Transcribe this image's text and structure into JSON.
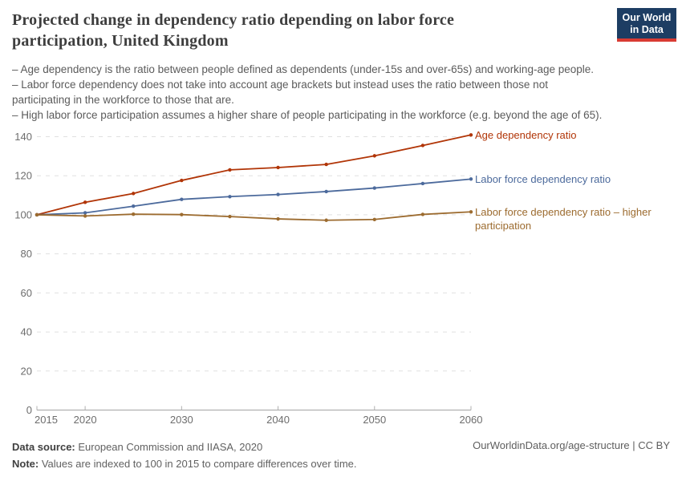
{
  "header": {
    "title": "Projected change in dependency ratio depending on labor force participation, United Kingdom",
    "logo": {
      "line1": "Our World",
      "line2": "in Data",
      "bg_color": "#1d3d63",
      "stripe_color": "#d93b33"
    }
  },
  "subtitle": {
    "lines": [
      "– Age dependency is the ratio between people defined as dependents (under-15s and over-65s) and working-age people.",
      "– Labor force dependency does not take into account age brackets but instead uses the ratio between those not",
      "participating in the workforce to those that are.",
      "– High labor force participation assumes a higher share of people participating in the workforce (e.g. beyond the age of 65)."
    ]
  },
  "chart_data": {
    "type": "line",
    "title": "Projected change in dependency ratio depending on labor force participation, United Kingdom",
    "x": [
      2015,
      2020,
      2025,
      2030,
      2035,
      2040,
      2045,
      2050,
      2055,
      2060
    ],
    "series": [
      {
        "name": "Age dependency ratio",
        "color": "#B13507",
        "values": [
          100,
          106.4,
          110.9,
          117.6,
          123,
          124.2,
          125.8,
          130.2,
          135.5,
          140.9
        ]
      },
      {
        "name": "Labor force dependency ratio",
        "color": "#4C6A9C",
        "values": [
          100,
          101,
          104.4,
          107.9,
          109.3,
          110.4,
          111.9,
          113.7,
          116,
          118.3
        ]
      },
      {
        "name": "Labor force dependency ratio – higher participation",
        "color": "#9C6B2F",
        "values": [
          100,
          99.4,
          100.3,
          100.1,
          99.1,
          97.9,
          97.2,
          97.6,
          100.2,
          101.5
        ]
      }
    ],
    "xticks": [
      2015,
      2020,
      2030,
      2040,
      2050,
      2060
    ],
    "yticks": [
      0,
      20,
      40,
      60,
      80,
      100,
      120,
      140
    ],
    "xlim": [
      2015,
      2060
    ],
    "ylim": [
      0,
      140
    ],
    "grid": "horizontal-dashed",
    "legend_position": "right-of-line-ends"
  },
  "footer": {
    "source_label": "Data source:",
    "source_text": "European Commission and IIASA, 2020",
    "note_label": "Note:",
    "note_text": "Values are indexed to 100 in 2015 to compare differences over time.",
    "credit": "OurWorldinData.org/age-structure | CC BY"
  }
}
